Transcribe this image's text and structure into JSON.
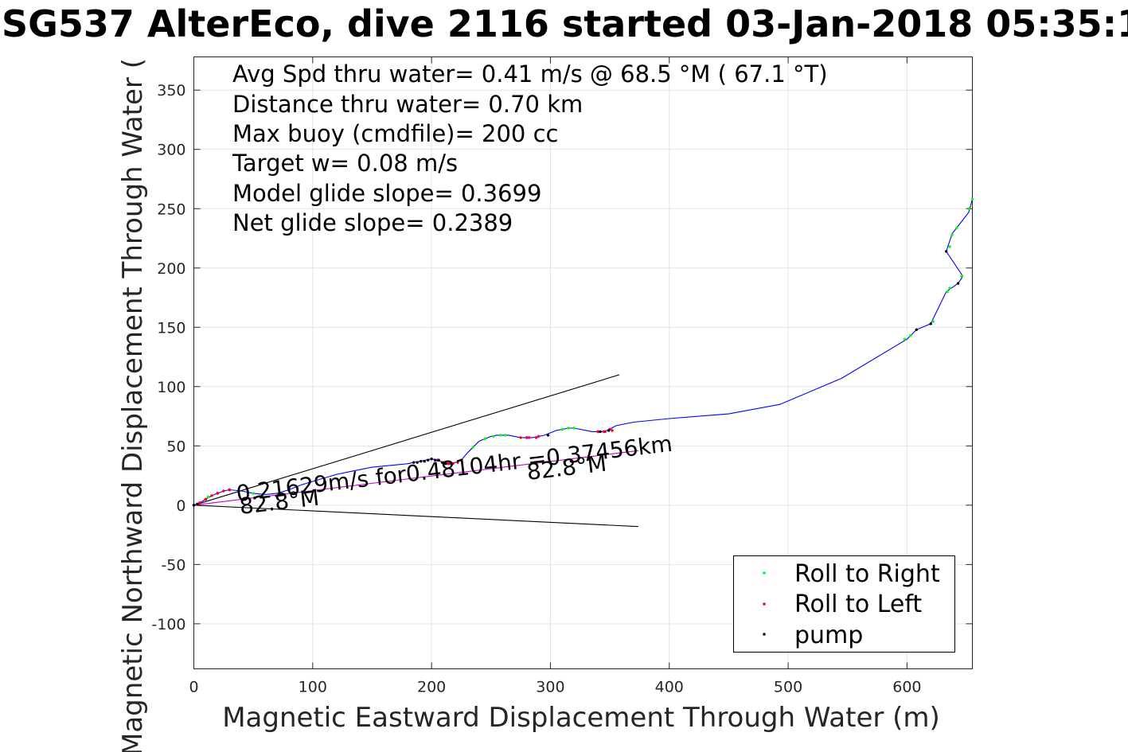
{
  "title": "SG537 AlterEco, dive 2116 started 03-Jan-2018 05:35:1",
  "chart_data": {
    "type": "line",
    "xlabel": "Magnetic Eastward Displacement Through Water (m)",
    "ylabel": "Magnetic Northward Displacement Through Water (",
    "xlim": [
      0,
      655
    ],
    "ylim": [
      -138,
      378
    ],
    "xticks": [
      0,
      100,
      200,
      300,
      400,
      500,
      600
    ],
    "yticks": [
      -100,
      -50,
      0,
      50,
      100,
      150,
      200,
      250,
      300,
      350
    ],
    "grid": true,
    "info_lines": [
      "Avg Spd thru water=  0.41 m/s @  68.5 °M ( 67.1 °T)",
      "Distance thru water=  0.70 km",
      "Max buoy (cmdfile)= 200 cc",
      "Target w= 0.08 m/s",
      "Model glide slope= 0.3699",
      "Net glide slope= 0.2389"
    ],
    "annotations": {
      "speed_text": "0.21629m/s for0.48104hr =0.37456km",
      "heading_near": "82.8°M",
      "heading_far": "82.8°M"
    },
    "track_color": "#0000ff",
    "track": [
      [
        0,
        0
      ],
      [
        5,
        2
      ],
      [
        10,
        5
      ],
      [
        15,
        8
      ],
      [
        20,
        10
      ],
      [
        25,
        12
      ],
      [
        30,
        13
      ],
      [
        40,
        12
      ],
      [
        50,
        10
      ],
      [
        60,
        9
      ],
      [
        70,
        10
      ],
      [
        80,
        13
      ],
      [
        90,
        17
      ],
      [
        100,
        20
      ],
      [
        110,
        23
      ],
      [
        120,
        26
      ],
      [
        130,
        28
      ],
      [
        140,
        30
      ],
      [
        150,
        32
      ],
      [
        160,
        33
      ],
      [
        170,
        34
      ],
      [
        180,
        35
      ],
      [
        185,
        36
      ],
      [
        190,
        37
      ],
      [
        195,
        38
      ],
      [
        200,
        39
      ],
      [
        205,
        38
      ],
      [
        210,
        36
      ],
      [
        215,
        35
      ],
      [
        220,
        36
      ],
      [
        225,
        38
      ],
      [
        230,
        44
      ],
      [
        235,
        49
      ],
      [
        240,
        54
      ],
      [
        245,
        56
      ],
      [
        250,
        58
      ],
      [
        255,
        59
      ],
      [
        260,
        59
      ],
      [
        265,
        59
      ],
      [
        270,
        58
      ],
      [
        275,
        57
      ],
      [
        280,
        57
      ],
      [
        285,
        57
      ],
      [
        290,
        58
      ],
      [
        295,
        59
      ],
      [
        300,
        61
      ],
      [
        305,
        63
      ],
      [
        310,
        64
      ],
      [
        315,
        65
      ],
      [
        320,
        65
      ],
      [
        325,
        64
      ],
      [
        330,
        63
      ],
      [
        335,
        62
      ],
      [
        340,
        62
      ],
      [
        345,
        62
      ],
      [
        350,
        64
      ],
      [
        355,
        67
      ],
      [
        370,
        70
      ],
      [
        400,
        73
      ],
      [
        450,
        77
      ],
      [
        493,
        85
      ],
      [
        545,
        107
      ],
      [
        600,
        140
      ],
      [
        608,
        148
      ],
      [
        620,
        153
      ],
      [
        633,
        180
      ],
      [
        643,
        187
      ],
      [
        647,
        193
      ],
      [
        633,
        214
      ],
      [
        638,
        229
      ],
      [
        645,
        238
      ],
      [
        652,
        247
      ],
      [
        655,
        258
      ]
    ],
    "series": [
      {
        "name": "Roll to Right",
        "color": "#00ff00",
        "points": [
          [
            12,
            7
          ],
          [
            50,
            10
          ],
          [
            58,
            9
          ],
          [
            235,
            49
          ],
          [
            245,
            56
          ],
          [
            252,
            58
          ],
          [
            258,
            59
          ],
          [
            262,
            59
          ],
          [
            310,
            64
          ],
          [
            315,
            65
          ],
          [
            320,
            65
          ],
          [
            598,
            140
          ],
          [
            603,
            143
          ],
          [
            622,
            155
          ],
          [
            634,
            180
          ],
          [
            636,
            183
          ],
          [
            646,
            193
          ],
          [
            636,
            218
          ],
          [
            638,
            228
          ],
          [
            642,
            234
          ],
          [
            652,
            250
          ],
          [
            655,
            258
          ]
        ]
      },
      {
        "name": "Roll to Left",
        "color": "#ff0000",
        "points": [
          [
            5,
            2
          ],
          [
            10,
            5
          ],
          [
            15,
            8
          ],
          [
            20,
            10
          ],
          [
            25,
            12
          ],
          [
            30,
            13
          ],
          [
            206,
            38
          ],
          [
            210,
            36
          ],
          [
            214,
            35
          ],
          [
            218,
            35
          ],
          [
            222,
            36
          ],
          [
            275,
            57
          ],
          [
            282,
            57
          ],
          [
            288,
            57
          ],
          [
            340,
            62
          ],
          [
            346,
            62
          ],
          [
            352,
            63
          ]
        ]
      },
      {
        "name": "pump",
        "color": "#000000",
        "points": [
          [
            0,
            0
          ],
          [
            3,
            1
          ],
          [
            185,
            36
          ],
          [
            188,
            36
          ],
          [
            191,
            37
          ],
          [
            194,
            37
          ],
          [
            197,
            38
          ],
          [
            200,
            39
          ],
          [
            203,
            38
          ],
          [
            206,
            38
          ],
          [
            209,
            36
          ],
          [
            212,
            35
          ],
          [
            298,
            59
          ],
          [
            342,
            62
          ],
          [
            349,
            63
          ],
          [
            608,
            148
          ],
          [
            620,
            153
          ],
          [
            643,
            187
          ],
          [
            633,
            214
          ]
        ]
      }
    ],
    "magenta_dots": [
      [
        0,
        0
      ],
      [
        10,
        5
      ],
      [
        20,
        10
      ],
      [
        30,
        13
      ],
      [
        205,
        38
      ],
      [
        215,
        35
      ],
      [
        225,
        38
      ],
      [
        280,
        57
      ],
      [
        290,
        58
      ],
      [
        340,
        62
      ],
      [
        345,
        62
      ],
      [
        350,
        64
      ]
    ],
    "lines": [
      {
        "color": "#000000",
        "from": [
          0,
          0
        ],
        "to": [
          358,
          110
        ]
      },
      {
        "color": "#000000",
        "from": [
          0,
          0
        ],
        "to": [
          374,
          -18
        ]
      },
      {
        "color": "#cc00cc",
        "from": [
          0,
          0
        ],
        "to": [
          374,
          46
        ]
      }
    ]
  }
}
